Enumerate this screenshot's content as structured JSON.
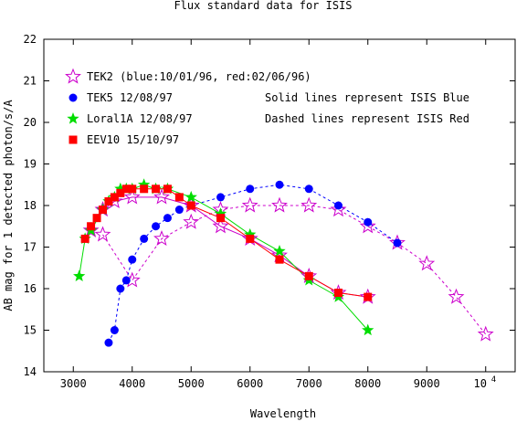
{
  "chart_data": {
    "type": "line",
    "title": "Flux standard data for ISIS",
    "xlabel": "Wavelength",
    "ylabel": "AB mag for 1 detected photon/s/A",
    "xlim": [
      2500,
      10500
    ],
    "ylim": [
      14,
      22
    ],
    "x_ticks": [
      3000,
      4000,
      5000,
      6000,
      7000,
      8000,
      9000,
      10000
    ],
    "x_tick_labels": [
      "3000",
      "4000",
      "5000",
      "6000",
      "7000",
      "8000",
      "9000",
      "10^4"
    ],
    "y_ticks": [
      14,
      15,
      16,
      17,
      18,
      19,
      20,
      21,
      22
    ],
    "y_tick_labels": [
      "14",
      "15",
      "16",
      "17",
      "18",
      "19",
      "20",
      "21",
      "22"
    ],
    "legend_placement": "top-left, inside plot",
    "annotations": [
      "Solid lines represent ISIS Blue",
      "Dashed lines represent ISIS Red"
    ],
    "series": [
      {
        "name": "TEK2 (blue:10/01/96, red:02/06/96)",
        "color": "#cc00cc",
        "marker": "open-star",
        "segments": [
          {
            "style": "solid",
            "x": [
              3300,
              3500,
              3700,
              4000,
              4500,
              5000,
              5500,
              6000,
              6500,
              7000,
              7500,
              8000
            ],
            "y": [
              17.4,
              17.9,
              18.1,
              18.2,
              18.2,
              18.0,
              17.5,
              17.2,
              16.8,
              16.3,
              15.9,
              15.8
            ]
          },
          {
            "style": "dashed",
            "x": [
              3500,
              4000,
              4500,
              5000,
              5500,
              6000,
              6500,
              7000,
              7500,
              8000,
              8500,
              9000,
              9500,
              10000
            ],
            "y": [
              17.3,
              16.2,
              17.2,
              17.6,
              17.9,
              18.0,
              18.0,
              18.0,
              17.9,
              17.5,
              17.1,
              16.6,
              15.8,
              14.9
            ]
          }
        ]
      },
      {
        "name": "TEK5 12/08/97",
        "color": "#0000ff",
        "marker": "circle",
        "segments": [
          {
            "style": "dashed",
            "x": [
              3600,
              3700,
              3800,
              3900,
              4000,
              4200,
              4400,
              4600,
              4800,
              5000,
              5500,
              6000,
              6500,
              7000,
              7500,
              8000,
              8500
            ],
            "y": [
              14.7,
              15.0,
              16.0,
              16.2,
              16.7,
              17.2,
              17.5,
              17.7,
              17.9,
              18.0,
              18.2,
              18.4,
              18.5,
              18.4,
              18.0,
              17.6,
              17.1
            ]
          }
        ]
      },
      {
        "name": "Loral1A 12/08/97",
        "color": "#00dd00",
        "marker": "filled-star",
        "segments": [
          {
            "style": "solid",
            "x": [
              3100,
              3200,
              3300,
              3500,
              3600,
              3700,
              3800,
              3900,
              4000,
              4200,
              4400,
              4600,
              5000,
              5500,
              6000,
              6500,
              7000,
              7500,
              8000
            ],
            "y": [
              16.3,
              17.2,
              17.4,
              17.9,
              18.1,
              18.2,
              18.4,
              18.4,
              18.4,
              18.5,
              18.4,
              18.4,
              18.2,
              17.8,
              17.3,
              16.9,
              16.2,
              15.8,
              15.0
            ]
          }
        ]
      },
      {
        "name": "EEV10 15/10/97",
        "color": "#ff0000",
        "marker": "filled-square",
        "segments": [
          {
            "style": "solid",
            "x": [
              3200,
              3300,
              3400,
              3500,
              3600,
              3700,
              3800,
              3900,
              4000,
              4200,
              4400,
              4600,
              4800,
              5000,
              5500,
              6000,
              6500,
              7000,
              7500,
              8000
            ],
            "y": [
              17.2,
              17.5,
              17.7,
              17.9,
              18.1,
              18.2,
              18.3,
              18.4,
              18.4,
              18.4,
              18.4,
              18.4,
              18.2,
              18.0,
              17.7,
              17.2,
              16.7,
              16.3,
              15.9,
              15.8
            ]
          }
        ]
      }
    ]
  }
}
